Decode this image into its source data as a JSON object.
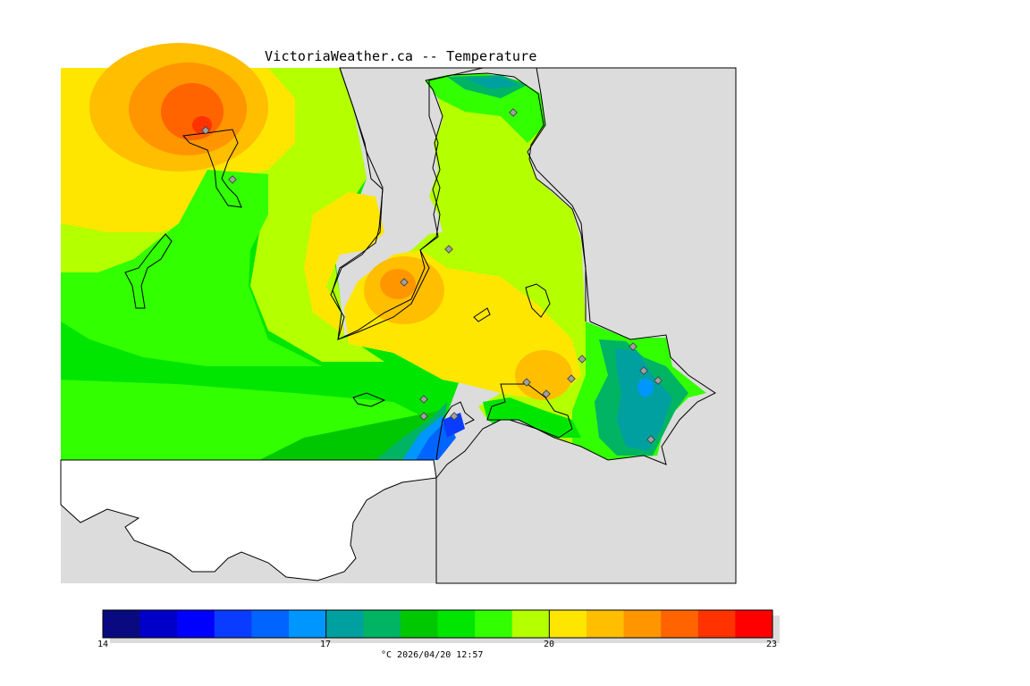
{
  "header": {
    "title": "VictoriaWeather.ca -- Temperature"
  },
  "colorbar": {
    "min": 14,
    "max": 23,
    "tick_labels": [
      "14",
      "17",
      "20",
      "23"
    ],
    "colors": [
      "#0a0a80",
      "#0000c8",
      "#0000ff",
      "#0a3cff",
      "#0064ff",
      "#0096ff",
      "#00a0a0",
      "#00b464",
      "#00c800",
      "#00e600",
      "#32ff00",
      "#b4ff00",
      "#ffe600",
      "#ffbe00",
      "#ff9600",
      "#ff6400",
      "#ff3200",
      "#ff0000"
    ],
    "caption": "°C  2026/04/20 12:57"
  },
  "map": {
    "background_color": "#dcdcdc",
    "no_data_color": "#ffffff",
    "station_marker_color": "#a0a0a0"
  }
}
